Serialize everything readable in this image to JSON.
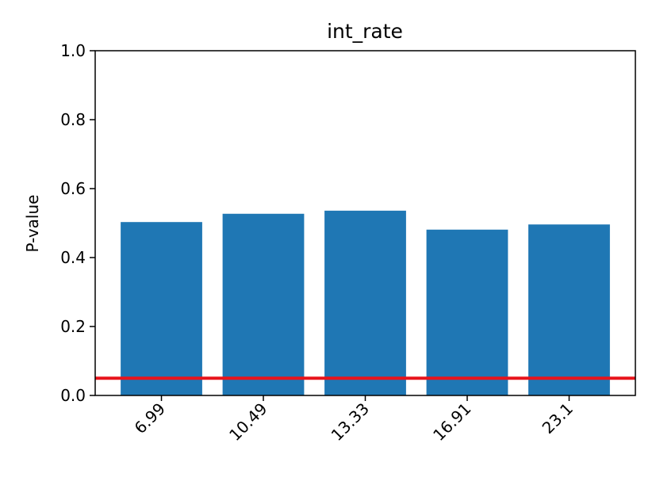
{
  "chart_data": {
    "type": "bar",
    "title": "int_rate",
    "xlabel": "",
    "ylabel": "P-value",
    "categories": [
      "6.99",
      "10.49",
      "13.33",
      "16.91",
      "23.1"
    ],
    "values": [
      0.503,
      0.527,
      0.536,
      0.481,
      0.496
    ],
    "ylim": [
      0,
      1.0
    ],
    "yticks": [
      "0.0",
      "0.2",
      "0.4",
      "0.6",
      "0.8",
      "1.0"
    ],
    "threshold": 0.05,
    "grid": false,
    "colors": {
      "bar": "#1f77b4",
      "threshold": "#e8141b",
      "axis": "#000000"
    }
  }
}
